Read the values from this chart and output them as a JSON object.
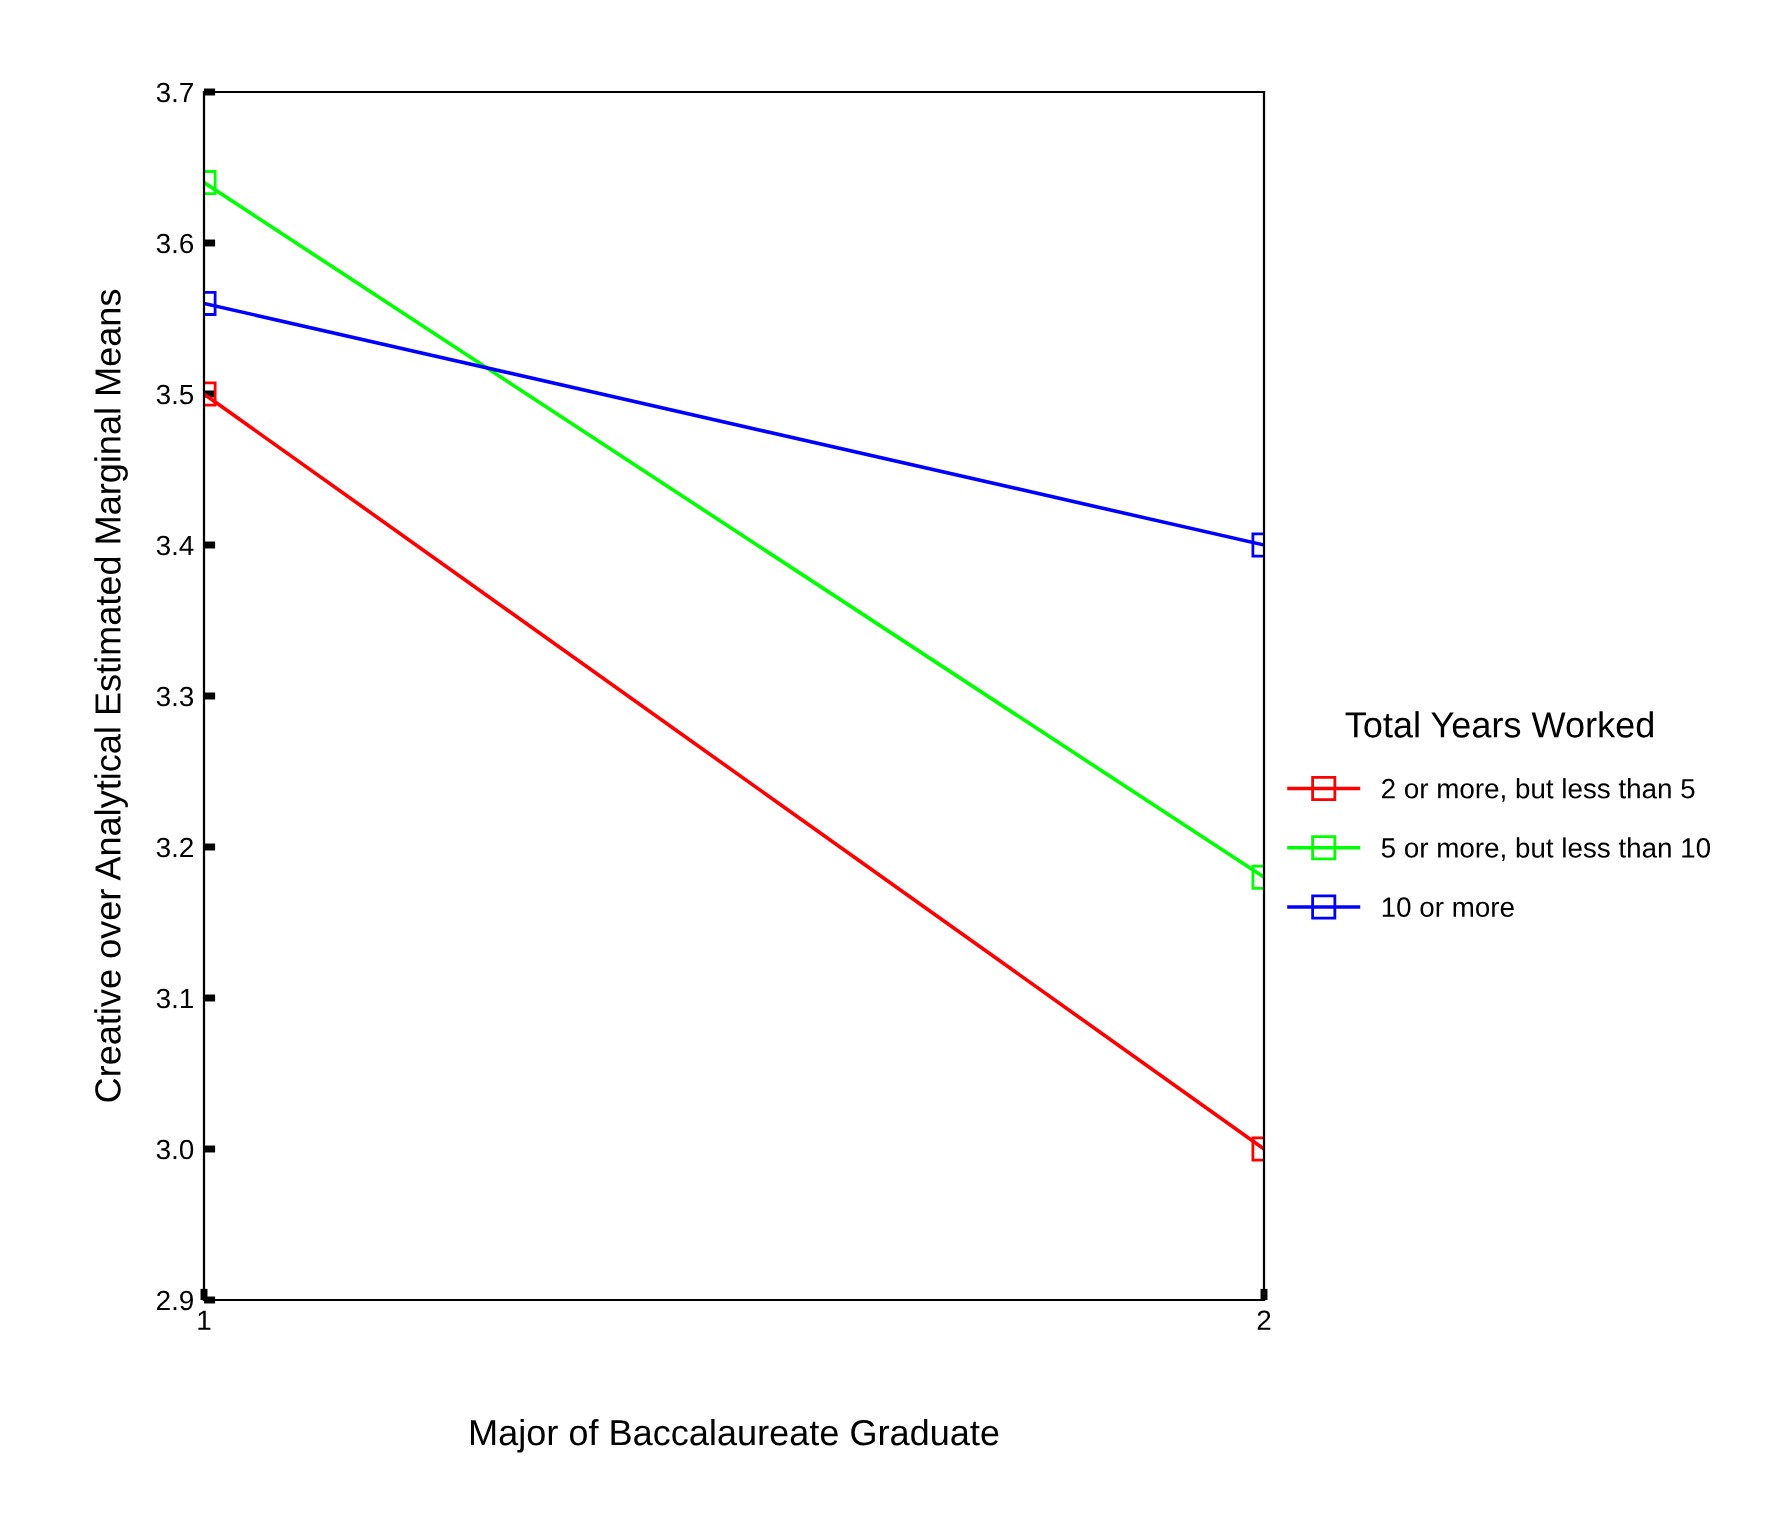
{
  "chart_data": {
    "type": "line",
    "xlabel": "Major of Baccalaureate Graduate",
    "ylabel": "Creative over Analytical Estimated Marginal Means",
    "legend_title": "Total Years Worked",
    "x": [
      1,
      2
    ],
    "xlim": [
      1,
      2
    ],
    "xticks": [
      1,
      2
    ],
    "ylim": [
      2.9,
      3.7
    ],
    "yticks": [
      2.9,
      {
        "value": 3,
        "label": "3.0"
      },
      3.1,
      3.2,
      3.3,
      3.4,
      3.5,
      3.6,
      3.7
    ],
    "series": [
      {
        "name": "2 or more, but less than 5",
        "color": "#ff0000",
        "values": [
          3.5,
          3.0
        ]
      },
      {
        "name": "5 or more, but less than 10",
        "color": "#00ff00",
        "values": [
          3.64,
          3.18
        ]
      },
      {
        "name": "10 or more",
        "color": "#0000ff",
        "values": [
          3.56,
          3.4
        ]
      }
    ],
    "marker": "square",
    "line_style": "solid",
    "grid": false,
    "legend": "right"
  }
}
